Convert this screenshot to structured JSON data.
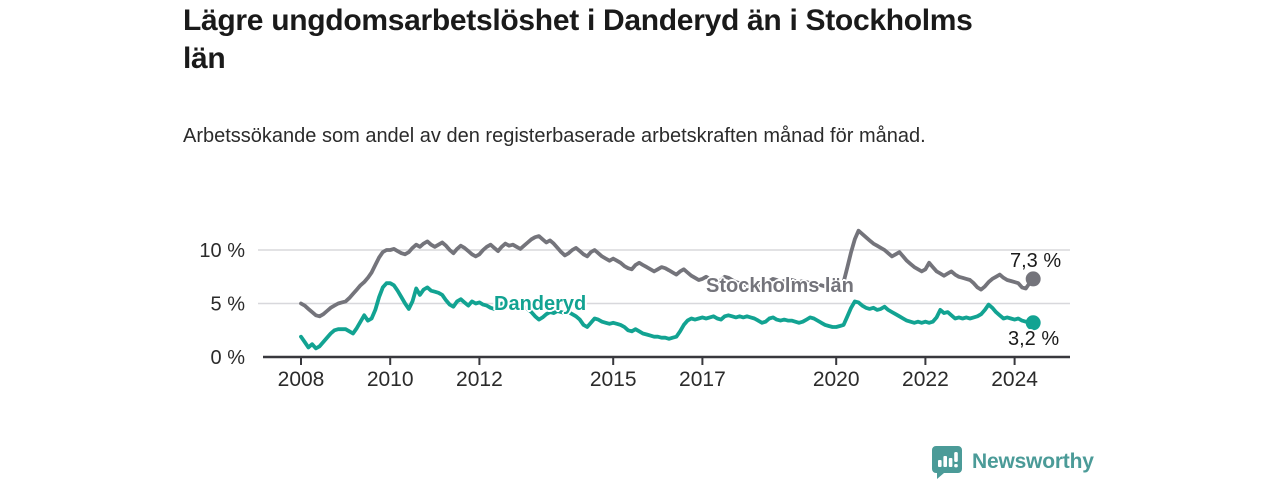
{
  "title": "Lägre ungdomsarbetslöshet i Danderyd än i Stockholms län",
  "subtitle": "Arbetssökande som andel av den registerbaserade arbetskraften månad för månad.",
  "chart_data": {
    "type": "line",
    "unit": "%",
    "x_start_year": 2008,
    "points_per_year": 12,
    "x_ticks": [
      2008,
      2010,
      2012,
      2015,
      2017,
      2020,
      2022,
      2024
    ],
    "y_ticks": [
      {
        "value": 0,
        "label": "0 %"
      },
      {
        "value": 5,
        "label": "5 %"
      },
      {
        "value": 10,
        "label": "10 %"
      }
    ],
    "ylim": [
      0,
      12.5
    ],
    "gridlines": [
      5,
      10
    ],
    "grid_color": "#d8d8dc",
    "axis_color": "#38383d",
    "tick_label_color": "#2b2b2b",
    "series": [
      {
        "name": "Stockholms län",
        "color": "#74747b",
        "end_label": "7,3 %",
        "end_value": 7.3,
        "values": [
          5.0,
          4.8,
          4.5,
          4.2,
          3.9,
          3.8,
          4.0,
          4.3,
          4.6,
          4.8,
          5.0,
          5.1,
          5.2,
          5.5,
          5.9,
          6.3,
          6.7,
          7.0,
          7.4,
          7.9,
          8.6,
          9.3,
          9.8,
          10.0,
          10.0,
          10.1,
          9.9,
          9.7,
          9.6,
          9.8,
          10.2,
          10.5,
          10.3,
          10.6,
          10.8,
          10.5,
          10.3,
          10.5,
          10.7,
          10.4,
          10.0,
          9.7,
          10.1,
          10.4,
          10.2,
          9.9,
          9.6,
          9.4,
          9.6,
          10.0,
          10.3,
          10.5,
          10.2,
          9.9,
          10.3,
          10.6,
          10.4,
          10.5,
          10.3,
          10.1,
          10.4,
          10.7,
          11.0,
          11.2,
          11.3,
          11.0,
          10.7,
          10.9,
          10.6,
          10.2,
          9.8,
          9.5,
          9.7,
          10.0,
          10.2,
          9.9,
          9.6,
          9.4,
          9.8,
          10.0,
          9.7,
          9.4,
          9.2,
          9.0,
          9.2,
          9.0,
          8.8,
          8.5,
          8.3,
          8.2,
          8.6,
          8.8,
          8.6,
          8.4,
          8.2,
          8.0,
          8.2,
          8.4,
          8.3,
          8.1,
          7.9,
          7.7,
          8.0,
          8.2,
          7.9,
          7.6,
          7.4,
          7.2,
          7.3,
          7.5,
          7.3,
          7.1,
          7.0,
          7.2,
          7.5,
          7.4,
          7.2,
          7.0,
          6.9,
          6.8,
          6.7,
          6.5,
          6.4,
          6.5,
          6.7,
          6.9,
          7.1,
          7.3,
          7.2,
          7.0,
          7.1,
          7.2,
          7.2,
          7.1,
          7.0,
          7.1,
          7.0,
          6.9,
          7.0,
          6.8,
          6.7,
          6.6,
          6.5,
          6.4,
          6.5,
          6.6,
          7.0,
          8.4,
          9.8,
          11.0,
          11.8,
          11.5,
          11.2,
          10.9,
          10.6,
          10.4,
          10.2,
          10.0,
          9.7,
          9.4,
          9.6,
          9.8,
          9.4,
          9.0,
          8.7,
          8.4,
          8.2,
          8.0,
          8.2,
          8.8,
          8.4,
          8.0,
          7.8,
          7.6,
          7.8,
          8.0,
          7.7,
          7.5,
          7.4,
          7.3,
          7.2,
          6.9,
          6.5,
          6.3,
          6.6,
          7.0,
          7.3,
          7.5,
          7.7,
          7.4,
          7.2,
          7.1,
          7.0,
          6.9,
          6.5,
          6.4,
          6.9,
          7.3
        ]
      },
      {
        "name": "Danderyd",
        "color": "#12a392",
        "end_label": "3,2 %",
        "end_value": 3.2,
        "values": [
          1.9,
          1.4,
          0.9,
          1.2,
          0.8,
          1.0,
          1.4,
          1.8,
          2.2,
          2.5,
          2.6,
          2.6,
          2.6,
          2.4,
          2.2,
          2.7,
          3.3,
          3.9,
          3.4,
          3.6,
          4.4,
          5.6,
          6.5,
          6.9,
          6.9,
          6.7,
          6.2,
          5.6,
          5.0,
          4.5,
          5.2,
          6.4,
          5.8,
          6.3,
          6.5,
          6.2,
          6.1,
          6.0,
          5.8,
          5.3,
          4.9,
          4.7,
          5.2,
          5.4,
          5.1,
          4.8,
          5.2,
          5.0,
          5.1,
          4.9,
          4.8,
          4.6,
          4.5,
          4.7,
          5.0,
          4.9,
          4.7,
          4.8,
          4.6,
          4.8,
          4.7,
          4.5,
          4.2,
          3.8,
          3.5,
          3.7,
          4.0,
          4.2,
          4.1,
          4.3,
          4.2,
          4.1,
          4.2,
          4.0,
          3.8,
          3.5,
          3.0,
          2.8,
          3.2,
          3.6,
          3.5,
          3.3,
          3.2,
          3.1,
          3.2,
          3.1,
          3.0,
          2.8,
          2.5,
          2.4,
          2.6,
          2.4,
          2.2,
          2.1,
          2.0,
          1.9,
          1.9,
          1.8,
          1.8,
          1.7,
          1.8,
          1.9,
          2.4,
          3.0,
          3.4,
          3.6,
          3.5,
          3.6,
          3.7,
          3.6,
          3.7,
          3.8,
          3.6,
          3.5,
          3.8,
          3.9,
          3.8,
          3.7,
          3.8,
          3.7,
          3.8,
          3.7,
          3.6,
          3.4,
          3.2,
          3.3,
          3.6,
          3.7,
          3.5,
          3.4,
          3.5,
          3.4,
          3.4,
          3.3,
          3.2,
          3.3,
          3.5,
          3.7,
          3.6,
          3.4,
          3.2,
          3.0,
          2.9,
          2.8,
          2.8,
          2.9,
          3.0,
          3.8,
          4.6,
          5.2,
          5.1,
          4.8,
          4.6,
          4.5,
          4.6,
          4.4,
          4.5,
          4.7,
          4.4,
          4.2,
          4.0,
          3.8,
          3.6,
          3.4,
          3.3,
          3.2,
          3.3,
          3.2,
          3.3,
          3.2,
          3.3,
          3.7,
          4.4,
          4.1,
          4.2,
          3.9,
          3.6,
          3.7,
          3.6,
          3.7,
          3.6,
          3.7,
          3.8,
          4.0,
          4.4,
          4.9,
          4.6,
          4.2,
          3.9,
          3.6,
          3.7,
          3.6,
          3.5,
          3.6,
          3.4,
          3.3,
          3.2,
          3.2
        ]
      }
    ]
  },
  "footer": {
    "brand": "Newsworthy",
    "brand_color": "#4b9b98",
    "logo_icon": "bar-chart-speech-bubble"
  }
}
